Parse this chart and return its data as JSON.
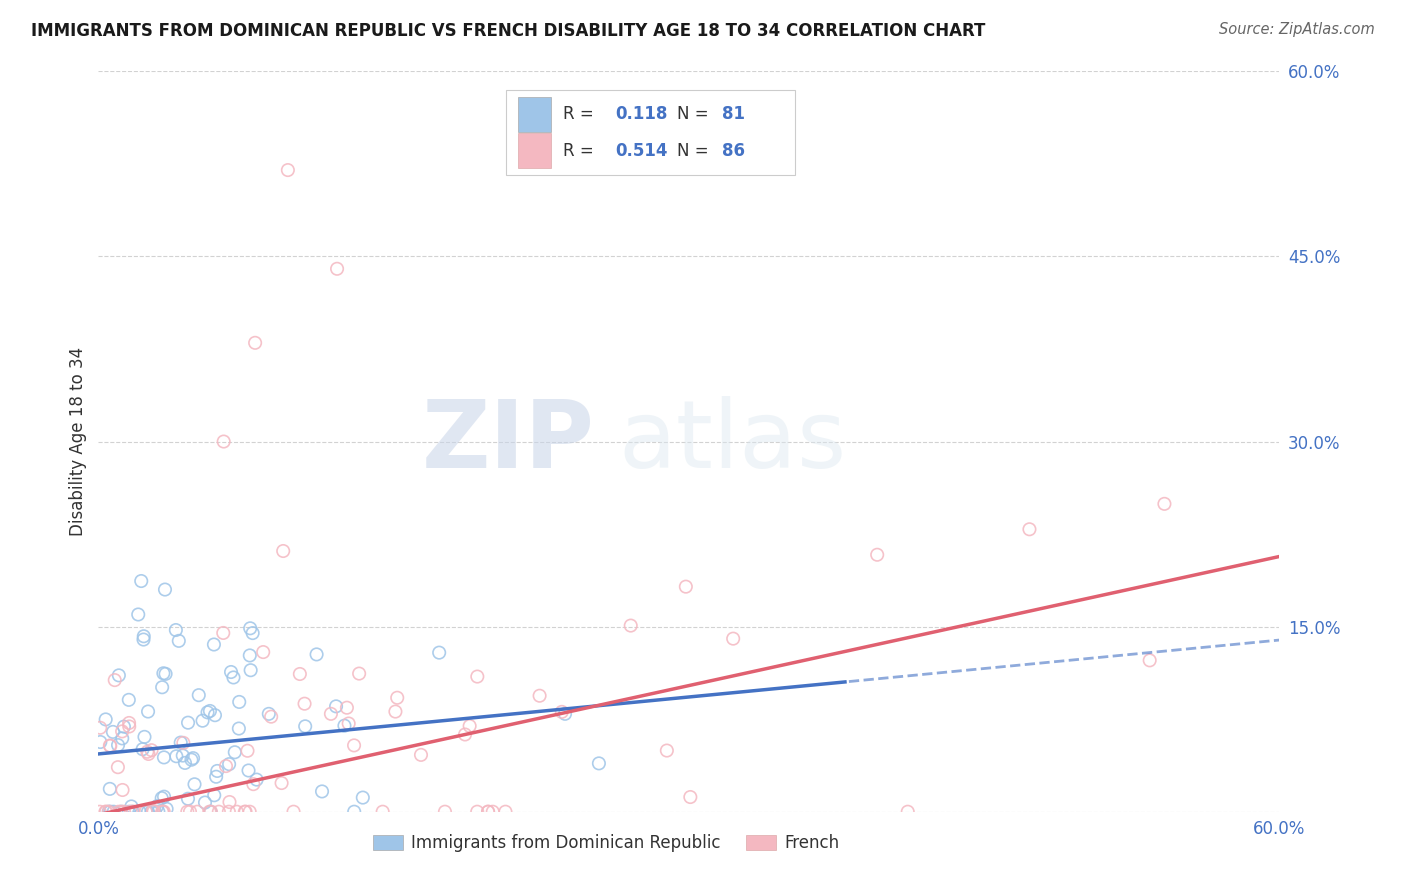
{
  "title": "IMMIGRANTS FROM DOMINICAN REPUBLIC VS FRENCH DISABILITY AGE 18 TO 34 CORRELATION CHART",
  "source": "Source: ZipAtlas.com",
  "ylabel": "Disability Age 18 to 34",
  "x_min": 0.0,
  "x_max": 0.6,
  "y_min": 0.0,
  "y_max": 0.6,
  "y_ticks": [
    0.0,
    0.15,
    0.3,
    0.45,
    0.6
  ],
  "y_tick_labels": [
    "",
    "15.0%",
    "30.0%",
    "45.0%",
    "60.0%"
  ],
  "legend_r1": "R = 0.118",
  "legend_n1": "N = 81",
  "legend_r2": "R = 0.514",
  "legend_n2": "N = 86",
  "color_blue": "#9fc5e8",
  "color_pink": "#f4b8c1",
  "color_blue_text": "#4472c4",
  "color_blue_line": "#4472c4",
  "color_pink_line": "#e06070",
  "watermark_zip": "ZIP",
  "watermark_atlas": "atlas",
  "label_blue": "Immigrants from Dominican Republic",
  "label_pink": "French"
}
